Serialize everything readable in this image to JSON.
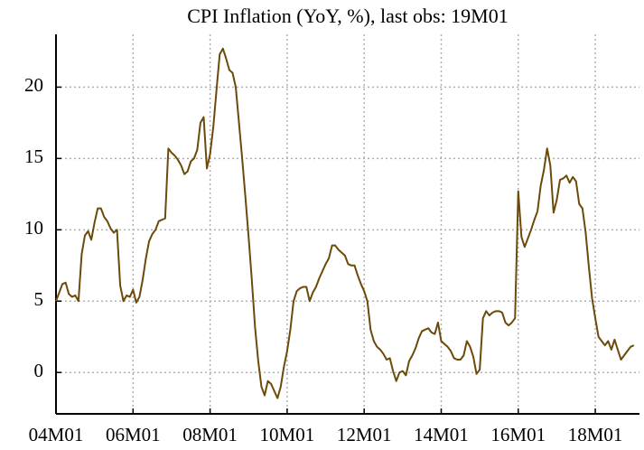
{
  "chart_data": {
    "type": "line",
    "title": "CPI Inflation (YoY, %), last obs: 19M01",
    "x": [
      "04M01",
      "04M02",
      "04M03",
      "04M04",
      "04M05",
      "04M06",
      "04M07",
      "04M08",
      "04M09",
      "04M10",
      "04M11",
      "04M12",
      "05M01",
      "05M02",
      "05M03",
      "05M04",
      "05M05",
      "05M06",
      "05M07",
      "05M08",
      "05M09",
      "05M10",
      "05M11",
      "05M12",
      "06M01",
      "06M02",
      "06M03",
      "06M04",
      "06M05",
      "06M06",
      "06M07",
      "06M08",
      "06M09",
      "06M10",
      "06M11",
      "06M12",
      "07M01",
      "07M02",
      "07M03",
      "07M04",
      "07M05",
      "07M06",
      "07M07",
      "07M08",
      "07M09",
      "07M10",
      "07M11",
      "07M12",
      "08M01",
      "08M02",
      "08M03",
      "08M04",
      "08M05",
      "08M06",
      "08M07",
      "08M08",
      "08M09",
      "08M10",
      "08M11",
      "08M12",
      "09M01",
      "09M02",
      "09M03",
      "09M04",
      "09M05",
      "09M06",
      "09M07",
      "09M08",
      "09M09",
      "09M10",
      "09M11",
      "09M12",
      "10M01",
      "10M02",
      "10M03",
      "10M04",
      "10M05",
      "10M06",
      "10M07",
      "10M08",
      "10M09",
      "10M10",
      "10M11",
      "10M12",
      "11M01",
      "11M02",
      "11M03",
      "11M04",
      "11M05",
      "11M06",
      "11M07",
      "11M08",
      "11M09",
      "11M10",
      "11M11",
      "11M12",
      "12M01",
      "12M02",
      "12M03",
      "12M04",
      "12M05",
      "12M06",
      "12M07",
      "12M08",
      "12M09",
      "12M10",
      "12M11",
      "12M12",
      "13M01",
      "13M02",
      "13M03",
      "13M04",
      "13M05",
      "13M06",
      "13M07",
      "13M08",
      "13M09",
      "13M10",
      "13M11",
      "13M12",
      "14M01",
      "14M02",
      "14M03",
      "14M04",
      "14M05",
      "14M06",
      "14M07",
      "14M08",
      "14M09",
      "14M10",
      "14M11",
      "14M12",
      "15M01",
      "15M02",
      "15M03",
      "15M04",
      "15M05",
      "15M06",
      "15M07",
      "15M08",
      "15M09",
      "15M10",
      "15M11",
      "15M12",
      "16M01",
      "16M02",
      "16M03",
      "16M04",
      "16M05",
      "16M06",
      "16M07",
      "16M08",
      "16M09",
      "16M10",
      "16M11",
      "16M12",
      "17M01",
      "17M02",
      "17M03",
      "17M04",
      "17M05",
      "17M06",
      "17M07",
      "17M08",
      "17M09",
      "17M10",
      "17M11",
      "17M12",
      "18M01",
      "18M02",
      "18M03",
      "18M04",
      "18M05",
      "18M06",
      "18M07",
      "18M08",
      "18M09",
      "18M10",
      "18M11",
      "18M12",
      "19M01"
    ],
    "series": [
      {
        "name": "CPI Inflation",
        "color": "#6b4a0a",
        "values": [
          5.0,
          5.6,
          6.2,
          6.3,
          5.5,
          5.3,
          5.4,
          5.0,
          8.3,
          9.6,
          9.9,
          9.3,
          10.5,
          11.5,
          11.5,
          10.9,
          10.6,
          10.1,
          9.8,
          10.0,
          6.1,
          5.0,
          5.4,
          5.3,
          5.8,
          4.9,
          5.3,
          6.5,
          8.0,
          9.2,
          9.7,
          10.0,
          10.6,
          10.7,
          10.8,
          15.7,
          15.4,
          15.2,
          14.9,
          14.5,
          13.9,
          14.1,
          14.8,
          15.0,
          15.6,
          17.5,
          17.9,
          14.3,
          15.3,
          17.2,
          19.8,
          22.3,
          22.7,
          22.0,
          21.2,
          21.0,
          20.0,
          17.5,
          15.0,
          12.3,
          9.5,
          6.5,
          3.2,
          0.8,
          -1.0,
          -1.6,
          -0.6,
          -0.8,
          -1.3,
          -1.8,
          -1.0,
          0.4,
          1.5,
          3.0,
          5.0,
          5.7,
          5.9,
          6.0,
          6.0,
          5.0,
          5.6,
          6.0,
          6.6,
          7.1,
          7.6,
          8.0,
          8.9,
          8.9,
          8.6,
          8.4,
          8.2,
          7.6,
          7.5,
          7.5,
          6.8,
          6.2,
          5.7,
          5.0,
          3.0,
          2.2,
          1.8,
          1.6,
          1.3,
          0.9,
          1.0,
          0.1,
          -0.6,
          0.0,
          0.1,
          -0.2,
          0.8,
          1.2,
          1.7,
          2.4,
          2.9,
          3.0,
          3.1,
          2.8,
          2.7,
          3.5,
          2.2,
          2.0,
          1.8,
          1.5,
          1.0,
          0.9,
          0.9,
          1.2,
          2.2,
          1.8,
          1.1,
          -0.1,
          0.2,
          3.8,
          4.3,
          4.0,
          4.2,
          4.3,
          4.3,
          4.2,
          3.5,
          3.3,
          3.5,
          3.8,
          12.7,
          9.5,
          8.8,
          9.4,
          10.0,
          10.7,
          11.3,
          13.1,
          14.2,
          15.7,
          14.5,
          11.2,
          12.1,
          13.5,
          13.6,
          13.8,
          13.3,
          13.7,
          13.4,
          11.8,
          11.5,
          9.8,
          7.4,
          5.2,
          3.8,
          2.5,
          2.2,
          1.9,
          2.2,
          1.6,
          2.3,
          1.6,
          0.9,
          1.2,
          1.5,
          1.8,
          1.9
        ]
      }
    ],
    "xticks": [
      "04M01",
      "06M01",
      "08M01",
      "10M01",
      "12M01",
      "14M01",
      "16M01",
      "18M01"
    ],
    "ylim": [
      -2.9,
      23.7
    ],
    "yticks": [
      0,
      5,
      10,
      15,
      20
    ],
    "grid": true
  }
}
